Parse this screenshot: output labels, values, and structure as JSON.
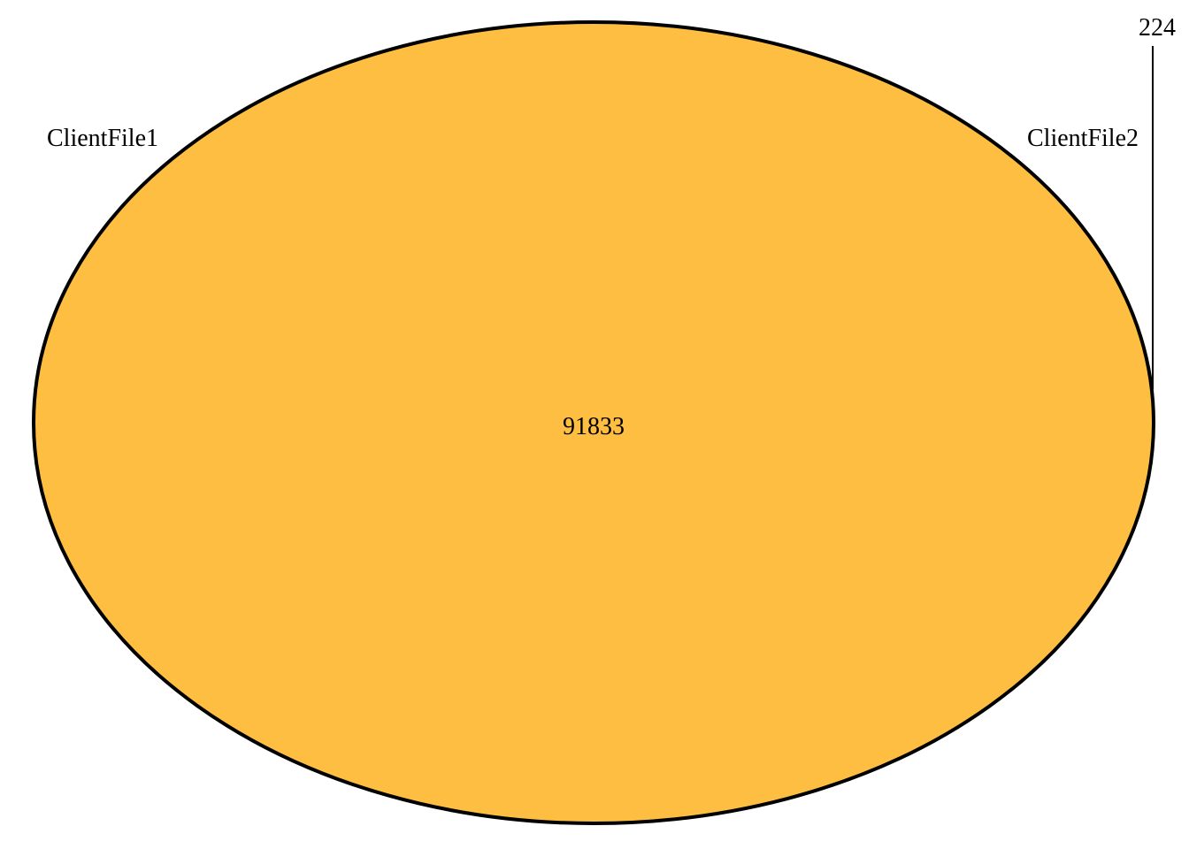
{
  "diagram": {
    "type": "venn",
    "sets": [
      {
        "name": "ClientFile1"
      },
      {
        "name": "ClientFile2"
      }
    ],
    "intersection_count": "91833",
    "outside_count": "224",
    "colors": {
      "fill": "#FDBE41",
      "stroke": "#000000"
    }
  }
}
